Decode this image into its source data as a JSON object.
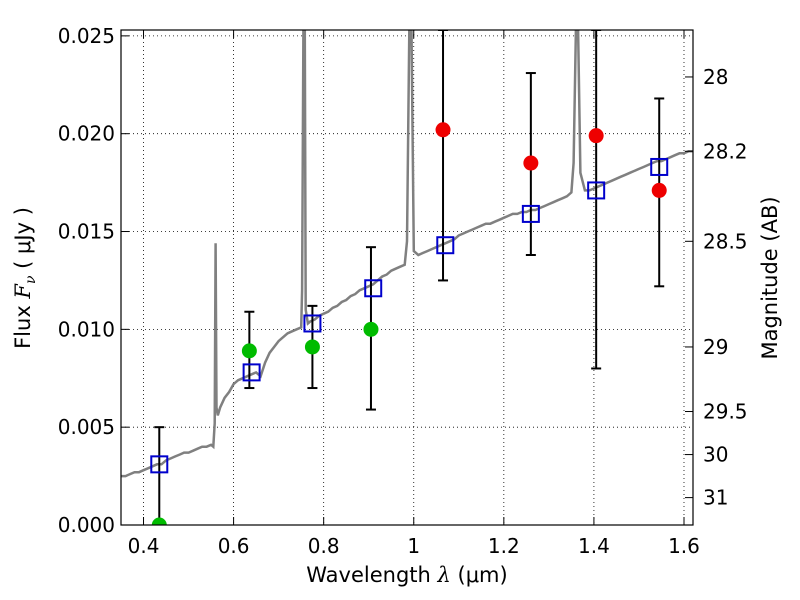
{
  "chart_data": {
    "type": "scatter",
    "xlabel_prefix": "Wavelength  ",
    "xlabel_symbol": "λ",
    "xlabel_unit": " (μm)",
    "ylabel_prefix": "Flux  ",
    "ylabel_symbol": "F",
    "ylabel_sub": "ν",
    "ylabel_unit": "  ( μJy )",
    "y2label": "Magnitude (AB)",
    "xlim": [
      0.35,
      1.62
    ],
    "ylim": [
      0.0,
      0.0253
    ],
    "x_ticks": [
      {
        "v": 0.4,
        "label": "0.4"
      },
      {
        "v": 0.6,
        "label": "0.6"
      },
      {
        "v": 0.8,
        "label": "0.8"
      },
      {
        "v": 1.0,
        "label": "1"
      },
      {
        "v": 1.2,
        "label": "1.2"
      },
      {
        "v": 1.4,
        "label": "1.4"
      },
      {
        "v": 1.6,
        "label": "1.6"
      }
    ],
    "y_ticks": [
      {
        "v": 0.0,
        "label": "0.000"
      },
      {
        "v": 0.005,
        "label": "0.005"
      },
      {
        "v": 0.01,
        "label": "0.010"
      },
      {
        "v": 0.015,
        "label": "0.015"
      },
      {
        "v": 0.02,
        "label": "0.020"
      },
      {
        "v": 0.025,
        "label": "0.025"
      }
    ],
    "y2_ticks": [
      {
        "flux": 0.0229,
        "label": "28"
      },
      {
        "flux": 0.0191,
        "label": "28.2"
      },
      {
        "flux": 0.0145,
        "label": "28.5"
      },
      {
        "flux": 0.0091,
        "label": "29"
      },
      {
        "flux": 0.0058,
        "label": "29.5"
      },
      {
        "flux": 0.0036,
        "label": "30"
      },
      {
        "flux": 0.0014,
        "label": "31"
      }
    ],
    "grid": true,
    "colors": {
      "model": "#808080",
      "model_points": "#0000cc",
      "green": "#00bb00",
      "red": "#ee0000",
      "errorbar": "#000000"
    },
    "model_points": [
      {
        "x": 0.435,
        "y": 0.0031
      },
      {
        "x": 0.64,
        "y": 0.0078
      },
      {
        "x": 0.775,
        "y": 0.0103
      },
      {
        "x": 0.91,
        "y": 0.0121
      },
      {
        "x": 1.07,
        "y": 0.0143
      },
      {
        "x": 1.26,
        "y": 0.0159
      },
      {
        "x": 1.405,
        "y": 0.0171
      },
      {
        "x": 1.545,
        "y": 0.0183
      }
    ],
    "observed_green": [
      {
        "x": 0.435,
        "y": 0.0,
        "lo": 0.0,
        "hi": 0.005
      },
      {
        "x": 0.635,
        "y": 0.0089,
        "lo": 0.007,
        "hi": 0.0109
      },
      {
        "x": 0.775,
        "y": 0.0091,
        "lo": 0.007,
        "hi": 0.0112
      },
      {
        "x": 0.905,
        "y": 0.01,
        "lo": 0.0059,
        "hi": 0.0142
      }
    ],
    "observed_red": [
      {
        "x": 1.065,
        "y": 0.0202,
        "lo": 0.0125,
        "hi": 0.0253
      },
      {
        "x": 1.26,
        "y": 0.0185,
        "lo": 0.0138,
        "hi": 0.0231
      },
      {
        "x": 1.405,
        "y": 0.0199,
        "lo": 0.008,
        "hi": 0.0253
      },
      {
        "x": 1.545,
        "y": 0.0171,
        "lo": 0.0122,
        "hi": 0.0218
      }
    ],
    "model_spectrum": [
      [
        0.35,
        0.0025
      ],
      [
        0.36,
        0.0025
      ],
      [
        0.37,
        0.0026
      ],
      [
        0.38,
        0.0027
      ],
      [
        0.39,
        0.0027
      ],
      [
        0.4,
        0.0028
      ],
      [
        0.41,
        0.0029
      ],
      [
        0.42,
        0.003
      ],
      [
        0.43,
        0.0031
      ],
      [
        0.44,
        0.0031
      ],
      [
        0.45,
        0.0033
      ],
      [
        0.46,
        0.0034
      ],
      [
        0.47,
        0.0035
      ],
      [
        0.48,
        0.0036
      ],
      [
        0.49,
        0.0037
      ],
      [
        0.5,
        0.0037
      ],
      [
        0.51,
        0.0038
      ],
      [
        0.52,
        0.0039
      ],
      [
        0.53,
        0.004
      ],
      [
        0.54,
        0.004
      ],
      [
        0.55,
        0.0041
      ],
      [
        0.555,
        0.004
      ],
      [
        0.558,
        0.0052
      ],
      [
        0.56,
        0.0144
      ],
      [
        0.562,
        0.006
      ],
      [
        0.565,
        0.0056
      ],
      [
        0.57,
        0.006
      ],
      [
        0.58,
        0.0065
      ],
      [
        0.59,
        0.0068
      ],
      [
        0.6,
        0.0072
      ],
      [
        0.61,
        0.0074
      ],
      [
        0.62,
        0.0075
      ],
      [
        0.63,
        0.0076
      ],
      [
        0.64,
        0.0077
      ],
      [
        0.65,
        0.0078
      ],
      [
        0.66,
        0.0076
      ],
      [
        0.67,
        0.0083
      ],
      [
        0.68,
        0.0088
      ],
      [
        0.69,
        0.0091
      ],
      [
        0.7,
        0.0094
      ],
      [
        0.71,
        0.0096
      ],
      [
        0.72,
        0.0098
      ],
      [
        0.73,
        0.0099
      ],
      [
        0.74,
        0.01
      ],
      [
        0.75,
        0.0101
      ],
      [
        0.752,
        0.012
      ],
      [
        0.755,
        0.0253
      ],
      [
        0.758,
        0.0253
      ],
      [
        0.76,
        0.011
      ],
      [
        0.765,
        0.0103
      ],
      [
        0.77,
        0.0104
      ],
      [
        0.78,
        0.0105
      ],
      [
        0.79,
        0.0107
      ],
      [
        0.8,
        0.0108
      ],
      [
        0.81,
        0.0109
      ],
      [
        0.82,
        0.0111
      ],
      [
        0.83,
        0.0112
      ],
      [
        0.84,
        0.0114
      ],
      [
        0.85,
        0.0115
      ],
      [
        0.86,
        0.0117
      ],
      [
        0.87,
        0.0118
      ],
      [
        0.88,
        0.012
      ],
      [
        0.89,
        0.0121
      ],
      [
        0.9,
        0.0122
      ],
      [
        0.91,
        0.0123
      ],
      [
        0.92,
        0.0125
      ],
      [
        0.93,
        0.0127
      ],
      [
        0.94,
        0.0128
      ],
      [
        0.95,
        0.013
      ],
      [
        0.96,
        0.0131
      ],
      [
        0.97,
        0.0132
      ],
      [
        0.98,
        0.0133
      ],
      [
        0.985,
        0.0145
      ],
      [
        0.99,
        0.0253
      ],
      [
        0.995,
        0.0253
      ],
      [
        1.0,
        0.014
      ],
      [
        1.01,
        0.0138
      ],
      [
        1.02,
        0.0139
      ],
      [
        1.03,
        0.014
      ],
      [
        1.04,
        0.0141
      ],
      [
        1.05,
        0.0142
      ],
      [
        1.06,
        0.0143
      ],
      [
        1.07,
        0.0144
      ],
      [
        1.08,
        0.0145
      ],
      [
        1.09,
        0.0146
      ],
      [
        1.1,
        0.0148
      ],
      [
        1.11,
        0.0149
      ],
      [
        1.12,
        0.015
      ],
      [
        1.13,
        0.0151
      ],
      [
        1.14,
        0.0152
      ],
      [
        1.15,
        0.0153
      ],
      [
        1.16,
        0.0154
      ],
      [
        1.17,
        0.0154
      ],
      [
        1.18,
        0.0155
      ],
      [
        1.19,
        0.0156
      ],
      [
        1.2,
        0.0157
      ],
      [
        1.21,
        0.0158
      ],
      [
        1.22,
        0.0159
      ],
      [
        1.23,
        0.0159
      ],
      [
        1.24,
        0.016
      ],
      [
        1.25,
        0.016
      ],
      [
        1.26,
        0.0161
      ],
      [
        1.27,
        0.0161
      ],
      [
        1.28,
        0.0162
      ],
      [
        1.29,
        0.0163
      ],
      [
        1.3,
        0.0164
      ],
      [
        1.31,
        0.0165
      ],
      [
        1.32,
        0.0166
      ],
      [
        1.33,
        0.0167
      ],
      [
        1.34,
        0.0168
      ],
      [
        1.35,
        0.017
      ],
      [
        1.355,
        0.0185
      ],
      [
        1.36,
        0.0253
      ],
      [
        1.365,
        0.0253
      ],
      [
        1.37,
        0.018
      ],
      [
        1.38,
        0.0171
      ],
      [
        1.39,
        0.0171
      ],
      [
        1.4,
        0.0172
      ],
      [
        1.41,
        0.0173
      ],
      [
        1.42,
        0.0174
      ],
      [
        1.43,
        0.0175
      ],
      [
        1.44,
        0.0176
      ],
      [
        1.45,
        0.0177
      ],
      [
        1.46,
        0.0178
      ],
      [
        1.47,
        0.0179
      ],
      [
        1.48,
        0.018
      ],
      [
        1.49,
        0.0181
      ],
      [
        1.5,
        0.0182
      ],
      [
        1.51,
        0.0183
      ],
      [
        1.52,
        0.0184
      ],
      [
        1.53,
        0.0185
      ],
      [
        1.54,
        0.0186
      ],
      [
        1.55,
        0.0186
      ],
      [
        1.56,
        0.0187
      ],
      [
        1.57,
        0.0188
      ],
      [
        1.58,
        0.0189
      ],
      [
        1.59,
        0.019
      ],
      [
        1.6,
        0.019
      ],
      [
        1.61,
        0.0191
      ],
      [
        1.62,
        0.0191
      ]
    ]
  }
}
